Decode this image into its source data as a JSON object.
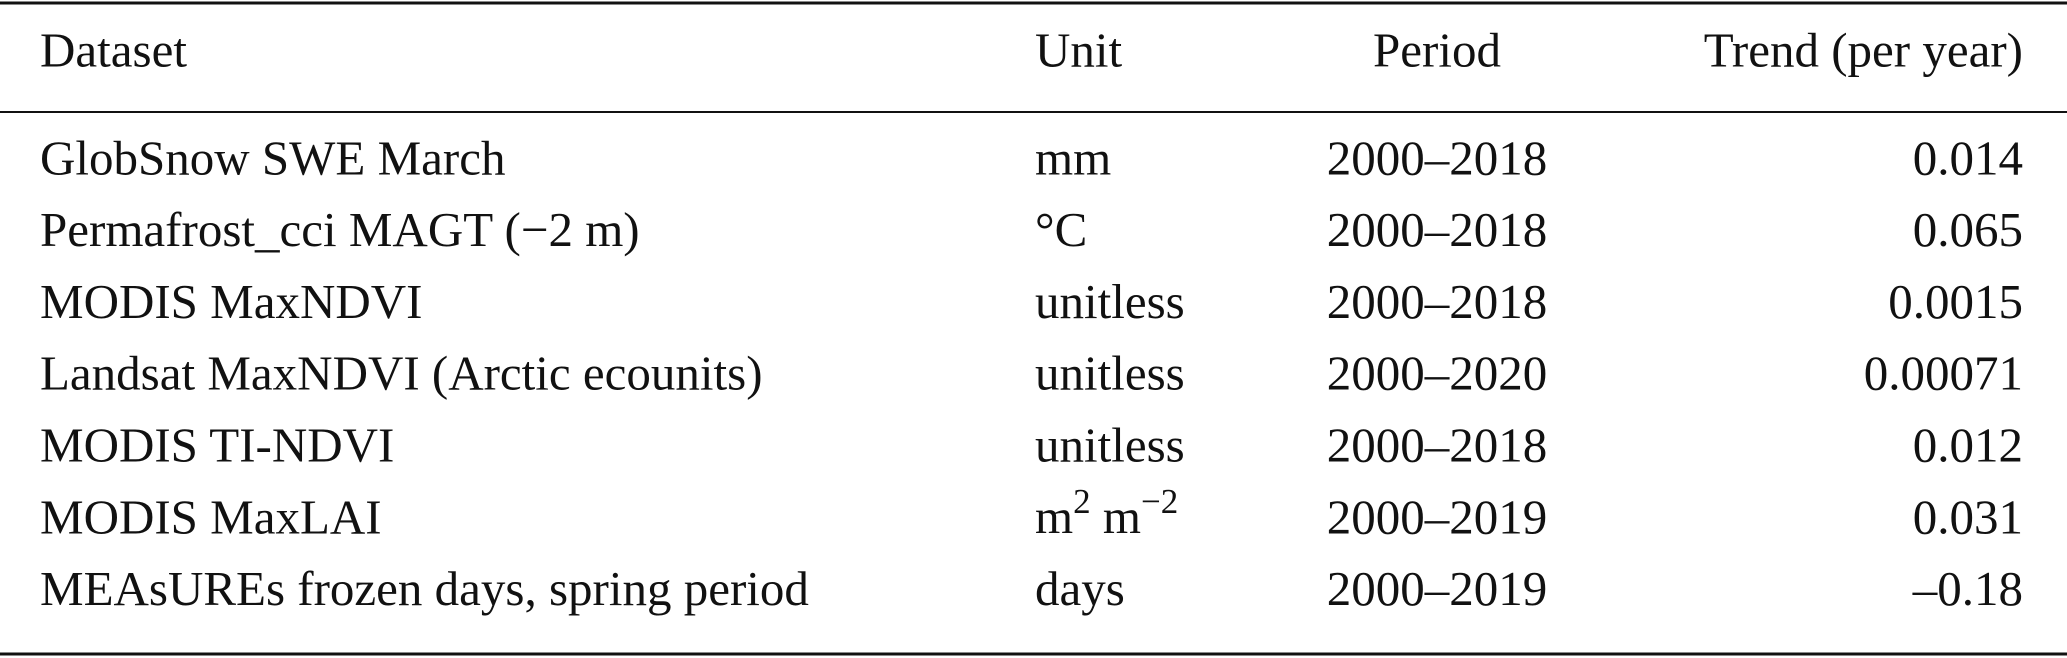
{
  "table": {
    "header": [
      "Dataset",
      "Unit",
      "Period",
      "Trend (per year)"
    ],
    "rows": [
      [
        "GlobSnow SWE March",
        "mm",
        "2000–2018",
        "0.014"
      ],
      [
        "Permafrost_cci MAGT (−2 m)",
        "°C",
        "2000–2018",
        "0.065"
      ],
      [
        "MODIS MaxNDVI",
        "unitless",
        "2000–2018",
        "0.0015"
      ],
      [
        "Landsat MaxNDVI (Arctic ecounits)",
        "unitless",
        "2000–2020",
        "0.00071"
      ],
      [
        "MODIS TI-NDVI",
        "unitless",
        "2000–2018",
        "0.012"
      ],
      [
        "MODIS MaxLAI",
        [
          {
            "text": "m"
          },
          {
            "text": "2",
            "sup": true
          },
          {
            "text": " m"
          },
          {
            "text": "−2",
            "sup": true
          }
        ],
        "2000–2019",
        "0.031"
      ],
      [
        "MEAsUREs frozen days, spring period",
        "days",
        "2000–2019",
        "–0.18"
      ]
    ]
  }
}
